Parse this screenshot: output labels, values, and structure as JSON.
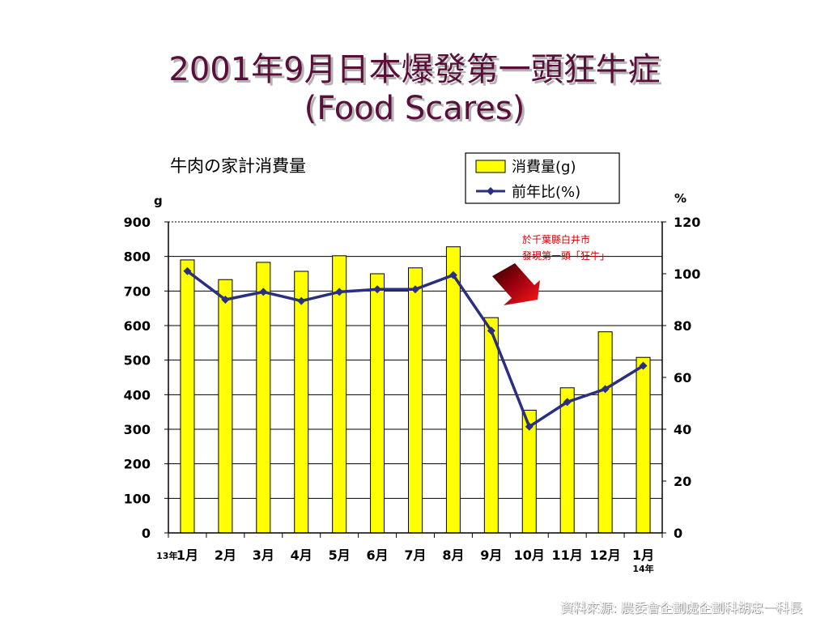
{
  "slide": {
    "title_line1": "2001年9月日本爆發第一頭狂牛症",
    "title_line2": "(Food Scares)",
    "source": "資料來源: 農委會企劃處企劃科胡忠一科長"
  },
  "chart_data": {
    "type": "bar+line",
    "title": "牛肉の家計消費量",
    "categories": [
      "1月",
      "2月",
      "3月",
      "4月",
      "5月",
      "6月",
      "7月",
      "8月",
      "9月",
      "10月",
      "11月",
      "12月",
      "1月"
    ],
    "year_start_label": "13年",
    "year_end_label": "14年",
    "left_axis": {
      "unit": "g",
      "min": 0,
      "max": 900,
      "ticks": [
        0,
        100,
        200,
        300,
        400,
        500,
        600,
        700,
        800,
        900
      ]
    },
    "right_axis": {
      "unit": "%",
      "min": 0,
      "max": 120,
      "ticks": [
        0,
        20,
        40,
        60,
        80,
        100,
        120
      ]
    },
    "series": [
      {
        "name": "消費量(g)",
        "type": "bar",
        "axis": "left",
        "color": "#ffff00",
        "values": [
          790,
          733,
          783,
          757,
          802,
          750,
          767,
          828,
          623,
          355,
          420,
          582,
          508
        ]
      },
      {
        "name": "前年比(%)",
        "type": "line",
        "axis": "right",
        "color": "#2a2f80",
        "values": [
          101,
          90,
          93,
          89.5,
          93,
          94,
          94,
          99.5,
          78,
          41,
          50.5,
          55.5,
          64.5
        ]
      }
    ],
    "annotation": {
      "line1": "於千葉縣白井市",
      "line2": "發現第一頭「狂牛」",
      "color": "#cc0000"
    },
    "grid": true,
    "legend_position": "top-right"
  }
}
